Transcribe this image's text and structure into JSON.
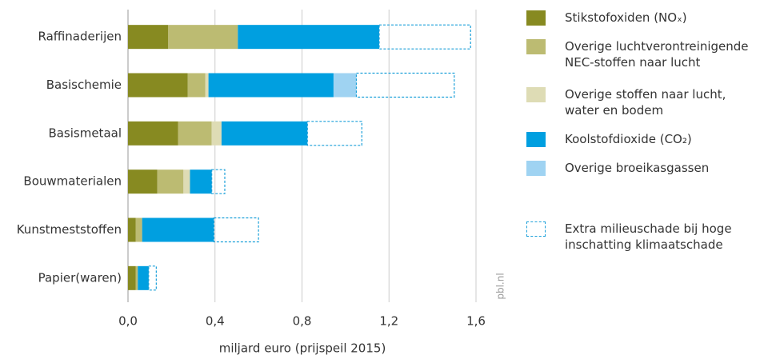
{
  "chart_data": {
    "type": "stacked-bar-horizontal",
    "xlabel": "miljard euro (prijspeil 2015)",
    "watermark": "pbl.nl",
    "categories": [
      "Raffinaderijen",
      "Basischemie",
      "Basismetaal",
      "Bouwmaterialen",
      "Kunstmeststoffen",
      "Papier(waren)"
    ],
    "series": [
      {
        "name": "Stikstofoxiden (NOₓ)",
        "color": "#878a21",
        "values": [
          0.185,
          0.275,
          0.23,
          0.135,
          0.035,
          0.035
        ]
      },
      {
        "name": "Overige luchtverontreinigende NEC-stoffen naar lucht",
        "color": "#bcbb72",
        "values": [
          0.32,
          0.08,
          0.155,
          0.12,
          0.03,
          0.01
        ]
      },
      {
        "name": "Overige stoffen naar lucht, water en bodem",
        "color": "#dedcb5",
        "values": [
          0,
          0.015,
          0.045,
          0.03,
          0,
          0
        ]
      },
      {
        "name": "Koolstofdioxide (CO₂)",
        "color": "#009fe0",
        "values": [
          0.65,
          0.575,
          0.395,
          0.1,
          0.33,
          0.05
        ]
      },
      {
        "name": "Overige broeikasgassen",
        "color": "#9fd3f2",
        "values": [
          0,
          0.105,
          0,
          0,
          0,
          0
        ]
      },
      {
        "name": "Extra milieuschade bij hoge inschatting klimaatschade",
        "color": "#1a9fd9",
        "style": "dashed",
        "values": [
          0.42,
          0.45,
          0.25,
          0.06,
          0.205,
          0.035
        ]
      }
    ],
    "xlim": [
      0,
      1.6
    ],
    "xticks": [
      {
        "value": 0,
        "label": "0,0"
      },
      {
        "value": 0.4,
        "label": "0,4"
      },
      {
        "value": 0.8,
        "label": "0,8"
      },
      {
        "value": 1.2,
        "label": "1,2"
      },
      {
        "value": 1.6,
        "label": "1,6"
      }
    ],
    "grid": true
  }
}
